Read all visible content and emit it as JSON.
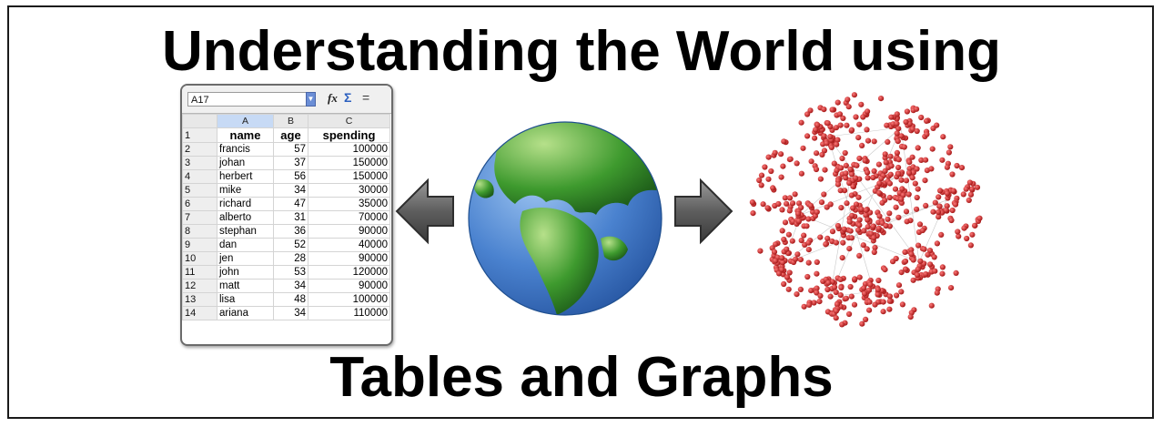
{
  "title_top": "Understanding the World using",
  "title_bottom": "Tables and Graphs",
  "spreadsheet": {
    "cell_ref": "A17",
    "fx_symbol": "fx",
    "sigma_symbol": "Σ",
    "equals_symbol": "=",
    "columns": [
      "A",
      "B",
      "C"
    ],
    "header": {
      "row": "1",
      "cells": [
        "name",
        "age",
        "spending"
      ]
    },
    "rows": [
      {
        "n": "2",
        "name": "francis",
        "age": "57",
        "spending": "100000"
      },
      {
        "n": "3",
        "name": "johan",
        "age": "37",
        "spending": "150000"
      },
      {
        "n": "4",
        "name": "herbert",
        "age": "56",
        "spending": "150000"
      },
      {
        "n": "5",
        "name": "mike",
        "age": "34",
        "spending": "30000"
      },
      {
        "n": "6",
        "name": "richard",
        "age": "47",
        "spending": "35000"
      },
      {
        "n": "7",
        "name": "alberto",
        "age": "31",
        "spending": "70000"
      },
      {
        "n": "8",
        "name": "stephan",
        "age": "36",
        "spending": "90000"
      },
      {
        "n": "9",
        "name": "dan",
        "age": "52",
        "spending": "40000"
      },
      {
        "n": "10",
        "name": "jen",
        "age": "28",
        "spending": "90000"
      },
      {
        "n": "11",
        "name": "john",
        "age": "53",
        "spending": "120000"
      },
      {
        "n": "12",
        "name": "matt",
        "age": "34",
        "spending": "90000"
      },
      {
        "n": "13",
        "name": "lisa",
        "age": "48",
        "spending": "100000"
      },
      {
        "n": "14",
        "name": "ariana",
        "age": "34",
        "spending": "110000"
      }
    ]
  },
  "colors": {
    "border": "#1a1a1a",
    "arrow": "#6e6e6e",
    "ocean": "#3f78c8",
    "land": "#3e9a2e",
    "node": "#c41e1e",
    "edge": "#c8c8c8"
  },
  "icons": [
    "left-arrow-icon",
    "globe-icon",
    "right-arrow-icon",
    "network-graph-icon"
  ]
}
